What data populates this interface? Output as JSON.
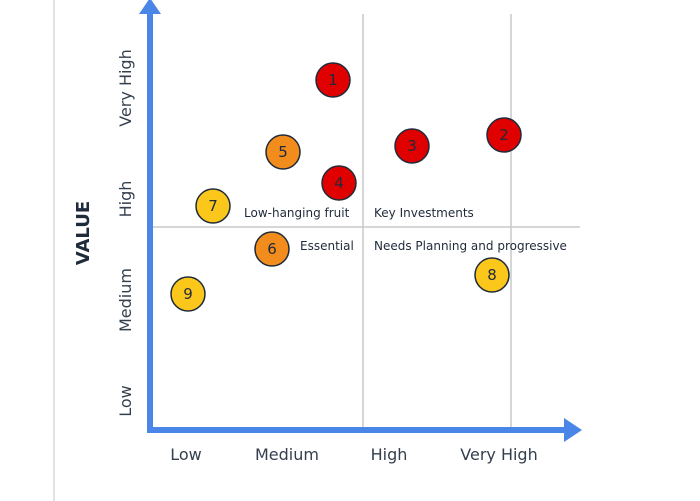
{
  "chart_data": {
    "type": "scatter",
    "title": "",
    "ylabel": "VALUE",
    "xlabel": "",
    "x_ticks": [
      "Low",
      "Medium",
      "High",
      "Very High"
    ],
    "y_ticks": [
      "Low",
      "Medium",
      "High",
      "Very High"
    ],
    "xlim": [
      0,
      4
    ],
    "ylim": [
      0,
      4
    ],
    "grid": "quadrant lines at x=2 and y=2, plus vertical line at x=3",
    "quadrant_labels": {
      "low_hanging_fruit": "Low-hanging fruit",
      "key_investments": "Key Investments",
      "essential": "Essential",
      "needs_planning": "Needs Planning and progressive"
    },
    "colors": {
      "axis": "#4a86e8",
      "grid": "#c8c8c8",
      "red": "#e00000",
      "orange": "#f28c1c",
      "yellow": "#fbc71b",
      "outline": "#1f2a3a"
    },
    "points": [
      {
        "label": "1",
        "x": 1.5,
        "y": 3.9,
        "color": "red"
      },
      {
        "label": "2",
        "x": 3.6,
        "y": 3.5,
        "color": "red"
      },
      {
        "label": "3",
        "x": 2.5,
        "y": 3.3,
        "color": "red"
      },
      {
        "label": "4",
        "x": 1.5,
        "y": 2.8,
        "color": "red"
      },
      {
        "label": "5",
        "x": 1.0,
        "y": 3.2,
        "color": "orange"
      },
      {
        "label": "6",
        "x": 0.9,
        "y": 1.9,
        "color": "orange"
      },
      {
        "label": "7",
        "x": 0.5,
        "y": 2.5,
        "color": "yellow"
      },
      {
        "label": "8",
        "x": 3.4,
        "y": 1.7,
        "color": "yellow"
      },
      {
        "label": "9",
        "x": 0.3,
        "y": 1.3,
        "color": "yellow"
      }
    ]
  }
}
